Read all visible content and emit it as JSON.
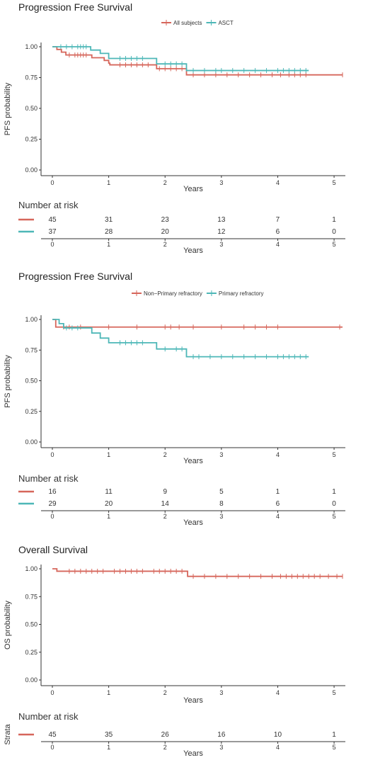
{
  "chart_data": [
    {
      "type": "line",
      "subtype": "kaplan-meier",
      "title": "Progression Free Survival",
      "xlabel": "Years",
      "ylabel": "PFS probability",
      "xlim": [
        0,
        5.2
      ],
      "ylim": [
        0,
        1
      ],
      "xticks": [
        0,
        1,
        2,
        3,
        4,
        5
      ],
      "yticks": [
        "0.00",
        "0.25",
        "0.50",
        "0.75",
        "1.00"
      ],
      "legend_position": "top",
      "grid": false,
      "series": [
        {
          "name": "All subjects",
          "color": "#d6665b",
          "steps": [
            [
              0,
              1.0
            ],
            [
              0.08,
              0.978
            ],
            [
              0.16,
              0.956
            ],
            [
              0.24,
              0.933
            ],
            [
              0.7,
              0.911
            ],
            [
              0.92,
              0.889
            ],
            [
              1.0,
              0.867
            ],
            [
              1.02,
              0.853
            ],
            [
              1.85,
              0.822
            ],
            [
              2.38,
              0.772
            ],
            [
              5.15,
              0.772
            ]
          ],
          "censor": [
            0.3,
            0.4,
            0.45,
            0.5,
            0.55,
            0.6,
            1.2,
            1.3,
            1.4,
            1.5,
            1.6,
            1.7,
            1.9,
            2.0,
            2.1,
            2.2,
            2.3,
            2.5,
            2.7,
            2.9,
            3.1,
            3.3,
            3.5,
            3.7,
            3.9,
            4.05,
            4.2,
            4.3,
            4.4,
            4.5,
            5.15
          ]
        },
        {
          "name": "ASCT",
          "color": "#4db7b7",
          "steps": [
            [
              0,
              1.0
            ],
            [
              0.68,
              0.973
            ],
            [
              0.85,
              0.946
            ],
            [
              1.0,
              0.905
            ],
            [
              1.85,
              0.861
            ],
            [
              2.38,
              0.807
            ],
            [
              4.55,
              0.807
            ]
          ],
          "censor": [
            0.15,
            0.25,
            0.35,
            0.45,
            0.5,
            0.55,
            0.6,
            1.2,
            1.3,
            1.4,
            1.5,
            1.6,
            2.0,
            2.1,
            2.2,
            2.3,
            2.5,
            2.7,
            2.9,
            3.0,
            3.2,
            3.4,
            3.6,
            3.8,
            4.0,
            4.1,
            4.2,
            4.3,
            4.4,
            4.5
          ]
        }
      ],
      "risk_table": {
        "title": "Number at risk",
        "times": [
          0,
          1,
          2,
          3,
          4,
          5
        ],
        "rows": [
          {
            "color": "#d6665b",
            "values": [
              "45",
              "31",
              "23",
              "13",
              "7",
              "1"
            ]
          },
          {
            "color": "#4db7b7",
            "values": [
              "37",
              "28",
              "20",
              "12",
              "6",
              "0"
            ]
          }
        ]
      }
    },
    {
      "type": "line",
      "subtype": "kaplan-meier",
      "title": "Progression Free Survival",
      "xlabel": "Years",
      "ylabel": "PFS probability",
      "xlim": [
        0,
        5.2
      ],
      "ylim": [
        0,
        1
      ],
      "xticks": [
        0,
        1,
        2,
        3,
        4,
        5
      ],
      "yticks": [
        "0.00",
        "0.25",
        "0.50",
        "0.75",
        "1.00"
      ],
      "legend_position": "top",
      "grid": false,
      "series": [
        {
          "name": "Non−Primary refractory",
          "color": "#d6665b",
          "steps": [
            [
              0,
              1.0
            ],
            [
              0.06,
              0.938
            ],
            [
              5.15,
              0.938
            ]
          ],
          "censor": [
            0.2,
            0.3,
            0.5,
            1.0,
            1.5,
            2.0,
            2.1,
            2.25,
            2.5,
            3.0,
            3.4,
            3.6,
            3.8,
            4.0,
            5.1
          ]
        },
        {
          "name": "Primary refractory",
          "color": "#4db7b7",
          "steps": [
            [
              0,
              1.0
            ],
            [
              0.12,
              0.966
            ],
            [
              0.2,
              0.931
            ],
            [
              0.7,
              0.889
            ],
            [
              0.85,
              0.848
            ],
            [
              1.0,
              0.81
            ],
            [
              1.85,
              0.759
            ],
            [
              2.38,
              0.696
            ],
            [
              4.55,
              0.696
            ]
          ],
          "censor": [
            0.25,
            0.35,
            0.45,
            1.2,
            1.3,
            1.4,
            1.5,
            1.6,
            2.0,
            2.2,
            2.3,
            2.5,
            2.6,
            2.8,
            3.0,
            3.2,
            3.4,
            3.6,
            3.8,
            4.0,
            4.1,
            4.2,
            4.3,
            4.4,
            4.5
          ]
        }
      ],
      "risk_table": {
        "title": "Number at risk",
        "times": [
          0,
          1,
          2,
          3,
          4,
          5
        ],
        "rows": [
          {
            "color": "#d6665b",
            "values": [
              "16",
              "11",
              "9",
              "5",
              "1",
              "1"
            ]
          },
          {
            "color": "#4db7b7",
            "values": [
              "29",
              "20",
              "14",
              "8",
              "6",
              "0"
            ]
          }
        ]
      }
    },
    {
      "type": "line",
      "subtype": "kaplan-meier",
      "title": "Overall Survival",
      "xlabel": "Years",
      "ylabel": "OS probability",
      "xlim": [
        0,
        5.2
      ],
      "ylim": [
        0,
        1
      ],
      "xticks": [
        0,
        1,
        2,
        3,
        4,
        5
      ],
      "yticks": [
        "0.00",
        "0.25",
        "0.50",
        "0.75",
        "1.00"
      ],
      "grid": false,
      "series": [
        {
          "name": "",
          "color": "#d6665b",
          "steps": [
            [
              0,
              1.0
            ],
            [
              0.08,
              0.978
            ],
            [
              2.38,
              0.978
            ],
            [
              2.4,
              0.932
            ],
            [
              5.15,
              0.932
            ]
          ],
          "censor": [
            0.3,
            0.4,
            0.5,
            0.6,
            0.7,
            0.8,
            0.9,
            1.1,
            1.2,
            1.3,
            1.4,
            1.5,
            1.6,
            1.8,
            1.9,
            2.0,
            2.1,
            2.2,
            2.3,
            2.5,
            2.7,
            2.9,
            3.1,
            3.3,
            3.5,
            3.7,
            3.9,
            4.05,
            4.15,
            4.25,
            4.35,
            4.45,
            4.55,
            4.65,
            4.75,
            4.9,
            5.05,
            5.15
          ]
        }
      ],
      "risk_table": {
        "title": "Number at risk",
        "row_axis_label": "Strata",
        "times": [
          0,
          1,
          2,
          3,
          4,
          5
        ],
        "rows": [
          {
            "color": "#d6665b",
            "values": [
              "45",
              "35",
              "26",
              "16",
              "10",
              "1"
            ]
          }
        ]
      }
    }
  ]
}
